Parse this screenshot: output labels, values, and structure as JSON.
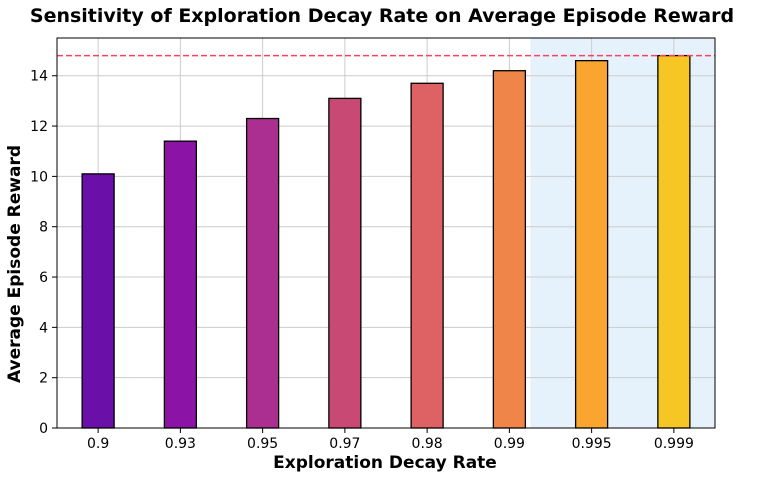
{
  "chart_data": {
    "type": "bar",
    "title": "Sensitivity of Exploration Decay Rate on Average Episode Reward",
    "xlabel": "Exploration Decay Rate",
    "ylabel": "Average Episode Reward",
    "categories": [
      "0.9",
      "0.93",
      "0.95",
      "0.97",
      "0.98",
      "0.99",
      "0.995",
      "0.999"
    ],
    "values": [
      10.1,
      11.4,
      12.3,
      13.1,
      13.7,
      14.2,
      14.6,
      14.8
    ],
    "ylim": [
      0,
      15.5
    ],
    "yticks": [
      0,
      2,
      4,
      6,
      8,
      10,
      12,
      14
    ],
    "reference_line": 14.8,
    "highlight_categories": [
      "0.99",
      "0.995",
      "0.999"
    ],
    "grid": true,
    "colors": {
      "bars": [
        "#6a0fa8",
        "#8b14a6",
        "#ab2f90",
        "#c84a74",
        "#de6163",
        "#ef8548",
        "#f9a52f",
        "#f6c624"
      ],
      "bar_edge": "#000000",
      "reference_line": "#ff4060",
      "highlight_band": "#e6f2fb",
      "grid": "#cccccc"
    }
  }
}
